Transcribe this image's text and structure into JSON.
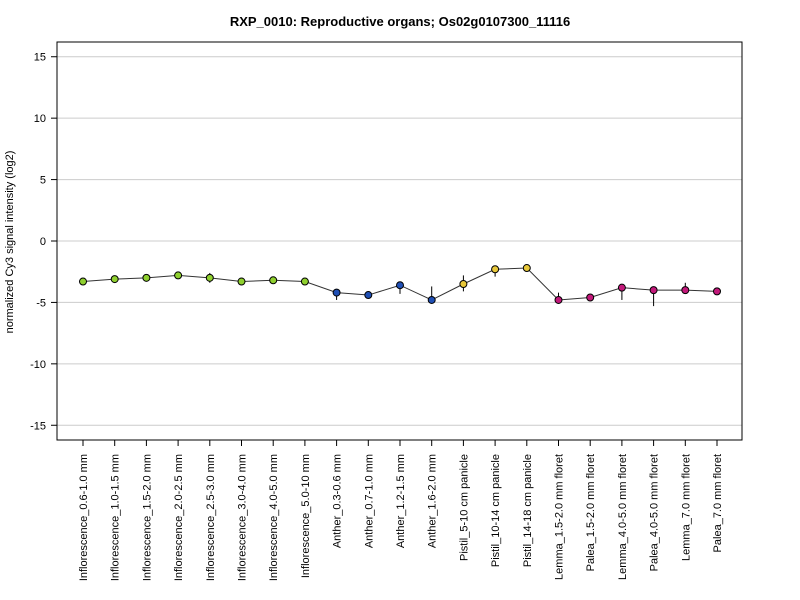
{
  "chart_data": {
    "type": "line",
    "title": "RXP_0010: Reproductive organs; Os02g0107300_11116",
    "xlabel": "",
    "ylabel": "normalized Cy3 signal intensity (log2)",
    "ylim": [
      -16.2,
      16.2
    ],
    "yticks": [
      -15,
      -10,
      -5,
      0,
      5,
      10,
      15
    ],
    "grid": "horizontal",
    "categories": [
      "Inflorescence_0.6-1.0 mm",
      "Inflorescence_1.0-1.5 mm",
      "Inflorescence_1.5-2.0 mm",
      "Inflorescence_2.0-2.5 mm",
      "Inflorescence_2.5-3.0 mm",
      "Inflorescence_3.0-4.0 mm",
      "Inflorescence_4.0-5.0 mm",
      "Inflorescence_5.0-10 mm",
      "Anther_0.3-0.6 mm",
      "Anther_0.7-1.0 mm",
      "Anther_1.2-1.5 mm",
      "Anther_1.6-2.0 mm",
      "Pistil_5-10 cm panicle",
      "Pistil_10-14 cm panicle",
      "Pistil_14-18 cm panicle",
      "Lemma_1.5-2.0 mm floret",
      "Palea_1.5-2.0 mm floret",
      "Lemma_4.0-5.0 mm floret",
      "Palea_4.0-5.0 mm floret",
      "Lemma_7.0 mm floret",
      "Palea_7.0 mm floret"
    ],
    "values": [
      -3.3,
      -3.1,
      -3.0,
      -2.8,
      -3.0,
      -3.3,
      -3.2,
      -3.3,
      -4.2,
      -4.4,
      -3.6,
      -4.8,
      -3.5,
      -2.3,
      -2.2,
      -4.8,
      -4.6,
      -3.8,
      -4.0,
      -4.0,
      -4.1
    ],
    "error_low": [
      -3.4,
      -3.2,
      -3.1,
      -2.9,
      -3.4,
      -3.4,
      -3.3,
      -3.4,
      -4.8,
      -4.5,
      -4.3,
      -5.1,
      -4.1,
      -2.9,
      -2.3,
      -5.0,
      -4.7,
      -4.8,
      -5.3,
      -4.3,
      -4.2
    ],
    "error_high": [
      -3.2,
      -3.0,
      -2.9,
      -2.7,
      -2.6,
      -3.2,
      -3.1,
      -3.2,
      -3.9,
      -4.3,
      -3.4,
      -3.7,
      -2.8,
      -2.1,
      -2.1,
      -4.2,
      -4.5,
      -3.6,
      -3.8,
      -3.4,
      -4.0
    ],
    "point_colors": [
      "#8fd02f",
      "#8fd02f",
      "#8fd02f",
      "#8fd02f",
      "#8fd02f",
      "#8fd02f",
      "#8fd02f",
      "#8fd02f",
      "#1f4fb4",
      "#1f4fb4",
      "#1f4fb4",
      "#1f4fb4",
      "#e8c83a",
      "#e8c83a",
      "#e8c83a",
      "#c2187a",
      "#c2187a",
      "#c2187a",
      "#c2187a",
      "#c2187a",
      "#c2187a"
    ],
    "line_color": "#333333",
    "grid_color": "#cccccc"
  }
}
